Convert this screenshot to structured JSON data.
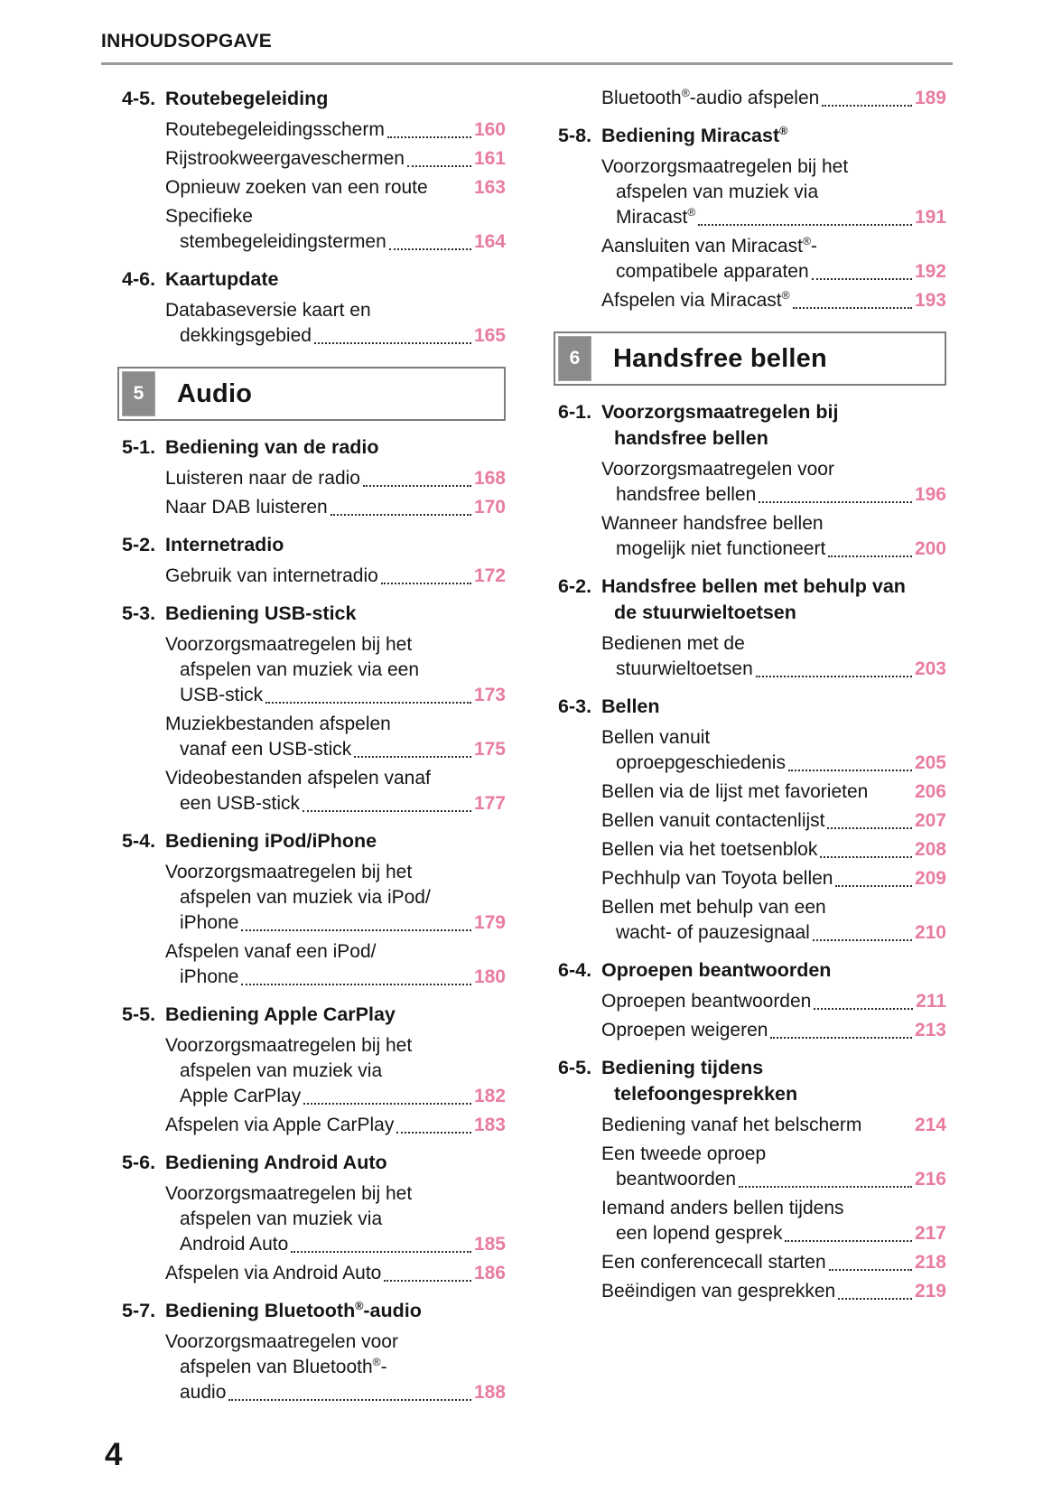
{
  "header": {
    "title": "INHOUDSOPGAVE"
  },
  "footer": {
    "page_number": "4"
  },
  "colors": {
    "page_number_pink": "#e87d9e",
    "chapter_tab_gray": "#8b8b8b",
    "rule_gray": "#9a9a9a",
    "text": "#161616"
  },
  "columns": {
    "left": [
      {
        "type": "section",
        "num": "4-5.",
        "title_lines": [
          "Routebegeleiding"
        ]
      },
      {
        "type": "entry",
        "lines": [
          "Routebegeleidingsscherm"
        ],
        "page": "160",
        "leader": true
      },
      {
        "type": "entry",
        "lines": [
          "Rijstrookweergaveschermen"
        ],
        "page": "161",
        "leader": true
      },
      {
        "type": "entry",
        "lines": [
          "Opnieuw zoeken van een route"
        ],
        "page": "163",
        "leader": false
      },
      {
        "type": "entry",
        "lines": [
          "Specifieke",
          "stembegeleidingstermen"
        ],
        "page": "164",
        "leader": true
      },
      {
        "type": "section",
        "num": "4-6.",
        "title_lines": [
          "Kaartupdate"
        ]
      },
      {
        "type": "entry",
        "lines": [
          "Databaseversie kaart en",
          "dekkingsgebied"
        ],
        "page": "165",
        "leader": true
      },
      {
        "type": "chapter",
        "num": "5",
        "title": "Audio"
      },
      {
        "type": "section",
        "num": "5-1.",
        "title_lines": [
          "Bediening van de radio"
        ]
      },
      {
        "type": "entry",
        "lines": [
          "Luisteren naar de radio"
        ],
        "page": "168",
        "leader": true
      },
      {
        "type": "entry",
        "lines": [
          "Naar DAB luisteren"
        ],
        "page": "170",
        "leader": true
      },
      {
        "type": "section",
        "num": "5-2.",
        "title_lines": [
          "Internetradio"
        ]
      },
      {
        "type": "entry",
        "lines": [
          "Gebruik van internetradio"
        ],
        "page": "172",
        "leader": true
      },
      {
        "type": "section",
        "num": "5-3.",
        "title_lines": [
          "Bediening USB-stick"
        ]
      },
      {
        "type": "entry",
        "lines": [
          "Voorzorgsmaatregelen bij het",
          "afspelen van muziek via een",
          "USB-stick"
        ],
        "page": "173",
        "leader": true
      },
      {
        "type": "entry",
        "lines": [
          "Muziekbestanden afspelen",
          "vanaf een USB-stick"
        ],
        "page": "175",
        "leader": true
      },
      {
        "type": "entry",
        "lines": [
          "Videobestanden afspelen vanaf",
          "een USB-stick"
        ],
        "page": "177",
        "leader": true
      },
      {
        "type": "section",
        "num": "5-4.",
        "title_lines": [
          "Bediening iPod/iPhone"
        ]
      },
      {
        "type": "entry",
        "lines": [
          "Voorzorgsmaatregelen bij het",
          "afspelen van muziek via iPod/",
          "iPhone"
        ],
        "page": "179",
        "leader": true
      },
      {
        "type": "entry",
        "lines": [
          "Afspelen vanaf een iPod/",
          "iPhone"
        ],
        "page": "180",
        "leader": true
      },
      {
        "type": "section",
        "num": "5-5.",
        "title_lines": [
          "Bediening Apple CarPlay"
        ]
      },
      {
        "type": "entry",
        "lines": [
          "Voorzorgsmaatregelen bij het",
          "afspelen van muziek via",
          "Apple CarPlay"
        ],
        "page": "182",
        "leader": true
      },
      {
        "type": "entry",
        "lines": [
          "Afspelen via Apple CarPlay"
        ],
        "page": "183",
        "leader": true
      },
      {
        "type": "section",
        "num": "5-6.",
        "title_lines": [
          "Bediening Android Auto"
        ]
      },
      {
        "type": "entry",
        "lines": [
          "Voorzorgsmaatregelen bij het",
          "afspelen van muziek via",
          "Android Auto"
        ],
        "page": "185",
        "leader": true
      },
      {
        "type": "entry",
        "lines": [
          "Afspelen via Android Auto"
        ],
        "page": "186",
        "leader": true
      },
      {
        "type": "section",
        "num": "5-7.",
        "title_lines": [
          "Bediening Bluetooth®-audio"
        ]
      },
      {
        "type": "entry",
        "lines": [
          "Voorzorgsmaatregelen voor",
          "afspelen van Bluetooth®-",
          "audio"
        ],
        "page": "188",
        "leader": true
      }
    ],
    "right": [
      {
        "type": "entry",
        "lines": [
          "Bluetooth®-audio afspelen"
        ],
        "page": "189",
        "leader": true
      },
      {
        "type": "section",
        "num": "5-8.",
        "title_lines": [
          "Bediening Miracast®"
        ]
      },
      {
        "type": "entry",
        "lines": [
          "Voorzorgsmaatregelen bij het",
          "afspelen van muziek via",
          "Miracast®"
        ],
        "page": "191",
        "leader": true
      },
      {
        "type": "entry",
        "lines": [
          "Aansluiten van Miracast®-",
          "compatibele apparaten"
        ],
        "page": "192",
        "leader": true
      },
      {
        "type": "entry",
        "lines": [
          "Afspelen via Miracast®"
        ],
        "page": "193",
        "leader": true
      },
      {
        "type": "chapter",
        "num": "6",
        "title": "Handsfree bellen"
      },
      {
        "type": "section",
        "num": "6-1.",
        "title_lines": [
          "Voorzorgsmaatregelen bij",
          "handsfree bellen"
        ]
      },
      {
        "type": "entry",
        "lines": [
          "Voorzorgsmaatregelen voor",
          "handsfree bellen"
        ],
        "page": "196",
        "leader": true
      },
      {
        "type": "entry",
        "lines": [
          "Wanneer handsfree bellen",
          "mogelijk niet functioneert"
        ],
        "page": "200",
        "leader": true
      },
      {
        "type": "section",
        "num": "6-2.",
        "title_lines": [
          "Handsfree bellen met behulp van",
          "de stuurwieltoetsen"
        ]
      },
      {
        "type": "entry",
        "lines": [
          "Bedienen met de",
          "stuurwieltoetsen"
        ],
        "page": "203",
        "leader": true
      },
      {
        "type": "section",
        "num": "6-3.",
        "title_lines": [
          "Bellen"
        ]
      },
      {
        "type": "entry",
        "lines": [
          "Bellen vanuit",
          "oproepgeschiedenis"
        ],
        "page": "205",
        "leader": true
      },
      {
        "type": "entry",
        "lines": [
          "Bellen via de lijst met favorieten"
        ],
        "page": "206",
        "leader": false
      },
      {
        "type": "entry",
        "lines": [
          "Bellen vanuit contactenlijst"
        ],
        "page": "207",
        "leader": true
      },
      {
        "type": "entry",
        "lines": [
          "Bellen via het toetsenblok"
        ],
        "page": "208",
        "leader": true
      },
      {
        "type": "entry",
        "lines": [
          "Pechhulp van Toyota bellen"
        ],
        "page": "209",
        "leader": true
      },
      {
        "type": "entry",
        "lines": [
          "Bellen met behulp van een",
          "wacht- of pauzesignaal"
        ],
        "page": "210",
        "leader": true
      },
      {
        "type": "section",
        "num": "6-4.",
        "title_lines": [
          "Oproepen beantwoorden"
        ]
      },
      {
        "type": "entry",
        "lines": [
          "Oproepen beantwoorden"
        ],
        "page": "211",
        "leader": true
      },
      {
        "type": "entry",
        "lines": [
          "Oproepen weigeren"
        ],
        "page": "213",
        "leader": true
      },
      {
        "type": "section",
        "num": "6-5.",
        "title_lines": [
          "Bediening tijdens",
          "telefoongesprekken"
        ]
      },
      {
        "type": "entry",
        "lines": [
          "Bediening vanaf het belscherm"
        ],
        "page": "214",
        "leader": false
      },
      {
        "type": "entry",
        "lines": [
          "Een tweede oproep",
          "beantwoorden"
        ],
        "page": "216",
        "leader": true
      },
      {
        "type": "entry",
        "lines": [
          "Iemand anders bellen tijdens",
          "een lopend gesprek"
        ],
        "page": "217",
        "leader": true
      },
      {
        "type": "entry",
        "lines": [
          "Een conferencecall starten"
        ],
        "page": "218",
        "leader": true
      },
      {
        "type": "entry",
        "lines": [
          "Beëindigen van gesprekken"
        ],
        "page": "219",
        "leader": true
      }
    ]
  }
}
